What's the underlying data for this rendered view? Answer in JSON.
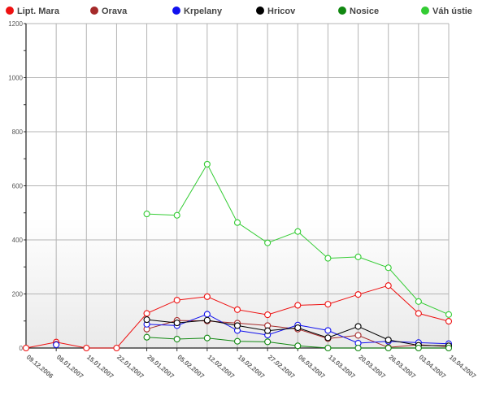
{
  "chart_data": {
    "type": "line",
    "title": "",
    "xlabel": "",
    "ylabel": "",
    "ylim": [
      0,
      1200
    ],
    "yticks": [
      0,
      200,
      400,
      600,
      800,
      1000,
      1200
    ],
    "grid": true,
    "legend_position": "top",
    "categories": [
      "09.12.2006",
      "08.01.2007",
      "15.01.2007",
      "22.01.2007",
      "29.01.2007",
      "05.02.2007",
      "12.02.2007",
      "19.02.2007",
      "27.02.2007",
      "06.03.2007",
      "13.03.2007",
      "20.03.2007",
      "26.03.2007",
      "03.04.2007",
      "10.04.2007"
    ],
    "series": [
      {
        "name": "Lipt. Mara",
        "color": "#ee1111",
        "values": [
          0,
          22,
          0,
          0,
          128,
          177,
          190,
          142,
          123,
          158,
          162,
          198,
          231,
          128,
          99
        ]
      },
      {
        "name": "Orava",
        "color": "#a52a2a",
        "values": [
          null,
          14,
          null,
          null,
          70,
          102,
          100,
          92,
          83,
          70,
          35,
          47,
          2,
          12,
          5
        ]
      },
      {
        "name": "Krpelany",
        "color": "#1111ee",
        "values": [
          null,
          12,
          null,
          null,
          88,
          83,
          125,
          65,
          48,
          85,
          65,
          18,
          25,
          20,
          16
        ]
      },
      {
        "name": "Hricov",
        "color": "#000000",
        "values": [
          null,
          null,
          null,
          null,
          105,
          93,
          103,
          83,
          64,
          75,
          38,
          80,
          30,
          10,
          8
        ]
      },
      {
        "name": "Nosice",
        "color": "#118811",
        "values": [
          null,
          null,
          null,
          null,
          40,
          33,
          37,
          25,
          23,
          8,
          0,
          0,
          0,
          0,
          0
        ]
      },
      {
        "name": "Váh ústie",
        "color": "#33cc33",
        "values": [
          null,
          null,
          null,
          null,
          496,
          491,
          680,
          464,
          389,
          431,
          332,
          337,
          297,
          172,
          124
        ]
      }
    ]
  }
}
